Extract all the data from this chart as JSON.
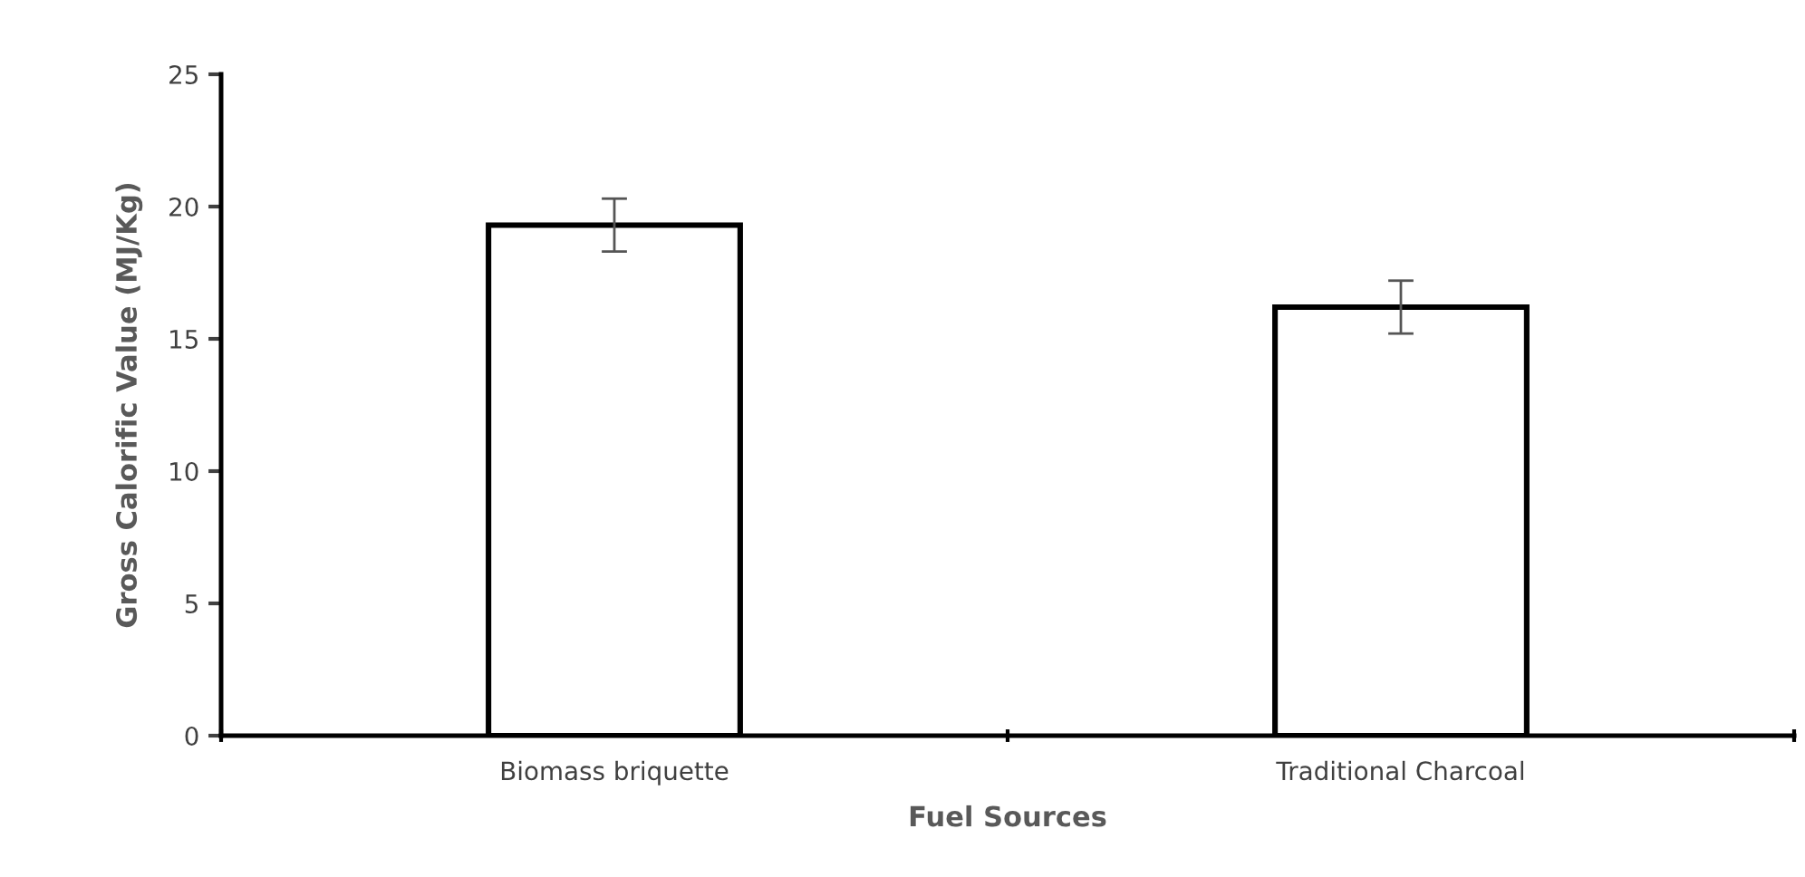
{
  "chart_data": {
    "type": "bar",
    "categories": [
      "Biomass briquette",
      "Traditional Charcoal"
    ],
    "values": [
      19.3,
      16.2
    ],
    "errors": [
      1.0,
      1.0
    ],
    "color": "#ffffff",
    "xlabel": "Fuel Sources",
    "ylabel": "Gross Calorific Value (MJ/Kg)",
    "ylim": [
      0,
      25
    ],
    "yticks": [
      0,
      5,
      10,
      15,
      20,
      25
    ],
    "grid": false
  }
}
